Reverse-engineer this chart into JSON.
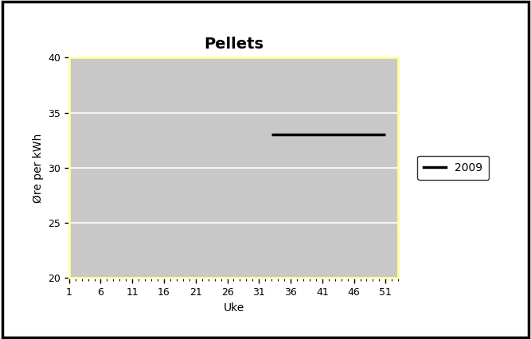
{
  "title": "Pellets",
  "xlabel": "Uke",
  "ylabel": "Øre per kWh",
  "ylim": [
    20,
    40
  ],
  "xlim": [
    1,
    53
  ],
  "yticks": [
    20,
    25,
    30,
    35,
    40
  ],
  "xticks": [
    1,
    6,
    11,
    16,
    21,
    26,
    31,
    36,
    41,
    46,
    51
  ],
  "plot_bg_color": "#c8c8c8",
  "outer_bg_color": "#ffffff",
  "fig_border_color": "#000000",
  "plot_border_color": "#ffffa0",
  "grid_color": "#ffffff",
  "line_2009": {
    "x_start": 33,
    "x_end": 51,
    "y_value": 33,
    "color": "#000000",
    "linewidth": 2.5,
    "label": "2009"
  },
  "title_fontsize": 14,
  "axis_label_fontsize": 10,
  "tick_fontsize": 9,
  "legend_fontsize": 10
}
